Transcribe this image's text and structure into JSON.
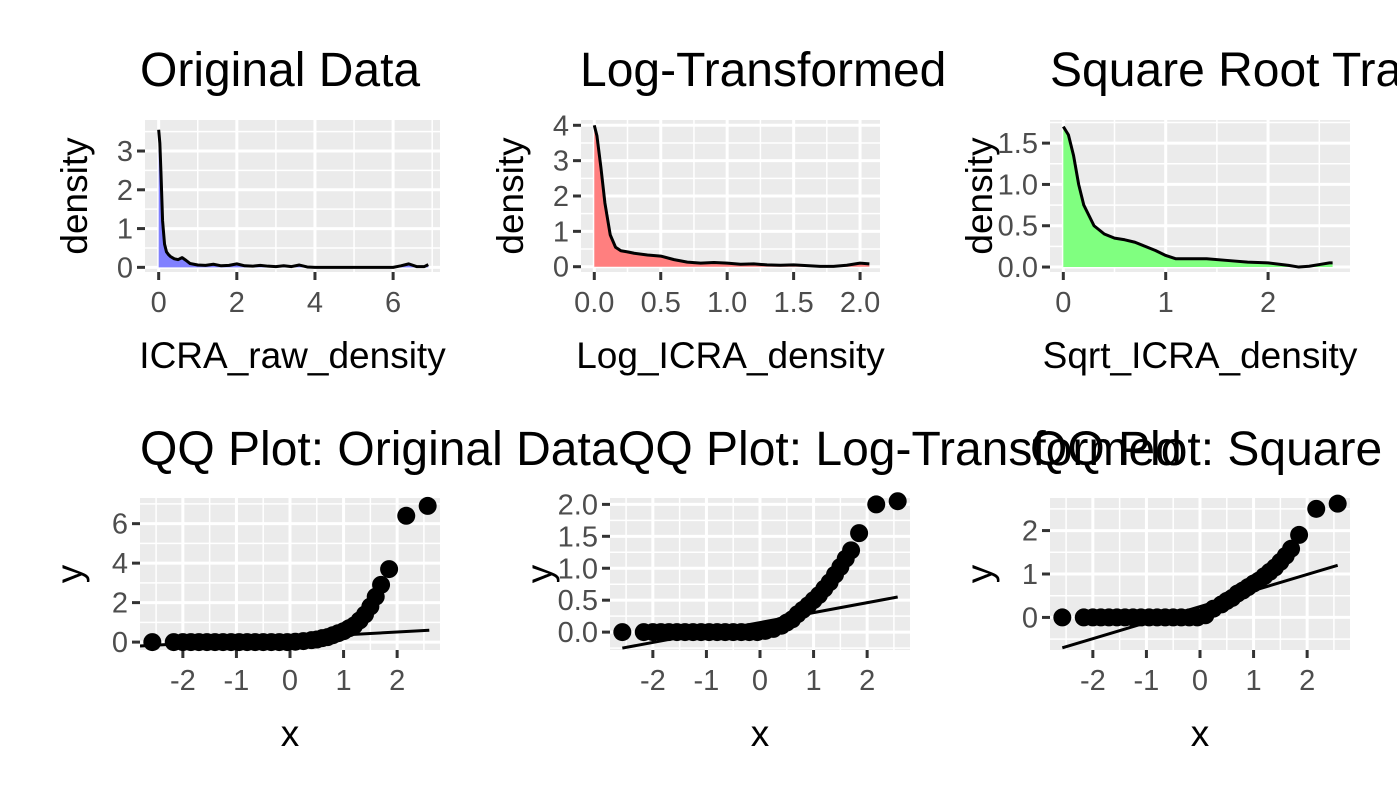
{
  "chart_data": [
    {
      "type": "area",
      "title": "Original Data",
      "xlabel": "ICRA_raw_density",
      "ylabel": "density",
      "xlim": [
        -0.35,
        7.2
      ],
      "ylim": [
        -0.12,
        3.8
      ],
      "xticks": [
        0,
        2,
        4,
        6
      ],
      "xtick_labels": [
        "0",
        "2",
        "4",
        "6"
      ],
      "yticks": [
        0,
        1,
        2,
        3
      ],
      "ytick_labels": [
        "0",
        "1",
        "2",
        "3"
      ],
      "fill_color": "#8080ff",
      "grid": true,
      "x": [
        0,
        0.03,
        0.06,
        0.1,
        0.15,
        0.2,
        0.25,
        0.3,
        0.4,
        0.5,
        0.6,
        0.7,
        0.8,
        0.9,
        1.0,
        1.2,
        1.4,
        1.6,
        1.8,
        2.0,
        2.2,
        2.4,
        2.6,
        2.8,
        3.0,
        3.2,
        3.4,
        3.6,
        3.8,
        4.0,
        5.0,
        6.0,
        6.2,
        6.4,
        6.6,
        6.8,
        6.9
      ],
      "y": [
        3.55,
        3.2,
        2.4,
        1.2,
        0.6,
        0.4,
        0.33,
        0.28,
        0.22,
        0.2,
        0.25,
        0.18,
        0.1,
        0.08,
        0.06,
        0.05,
        0.08,
        0.04,
        0.05,
        0.09,
        0.04,
        0.03,
        0.05,
        0.03,
        0.02,
        0.04,
        0.02,
        0.06,
        0.01,
        0.0,
        0.0,
        0.0,
        0.04,
        0.09,
        0.02,
        0.02,
        0.07
      ]
    },
    {
      "type": "area",
      "title": "Log-Transformed",
      "xlabel": "Log_ICRA_density",
      "ylabel": "density",
      "xlim": [
        -0.1,
        2.15
      ],
      "ylim": [
        -0.15,
        4.15
      ],
      "xticks": [
        0,
        0.5,
        1.0,
        1.5,
        2.0
      ],
      "xtick_labels": [
        "0.0",
        "0.5",
        "1.0",
        "1.5",
        "2.0"
      ],
      "yticks": [
        0,
        1,
        2,
        3,
        4
      ],
      "ytick_labels": [
        "0",
        "1",
        "2",
        "3",
        "4"
      ],
      "fill_color": "#ff7f7f",
      "grid": true,
      "x": [
        0,
        0.02,
        0.05,
        0.08,
        0.12,
        0.16,
        0.2,
        0.25,
        0.3,
        0.4,
        0.5,
        0.6,
        0.7,
        0.8,
        0.9,
        1.0,
        1.1,
        1.2,
        1.3,
        1.4,
        1.5,
        1.6,
        1.7,
        1.8,
        1.9,
        2.0,
        2.07
      ],
      "y": [
        4.0,
        3.7,
        2.8,
        1.8,
        0.9,
        0.55,
        0.45,
        0.42,
        0.38,
        0.33,
        0.3,
        0.2,
        0.13,
        0.1,
        0.12,
        0.1,
        0.07,
        0.08,
        0.05,
        0.04,
        0.05,
        0.03,
        0.01,
        0.01,
        0.04,
        0.1,
        0.08
      ]
    },
    {
      "type": "area",
      "title": "Square Root Transformed",
      "xlabel": "Sqrt_ICRA_density",
      "ylabel": "density",
      "xlim": [
        -0.13,
        2.8
      ],
      "ylim": [
        -0.06,
        1.78
      ],
      "xticks": [
        0,
        1,
        2
      ],
      "xtick_labels": [
        "0",
        "1",
        "2"
      ],
      "yticks": [
        0,
        0.5,
        1.0,
        1.5
      ],
      "ytick_labels": [
        "0.0",
        "0.5",
        "1.0",
        "1.5"
      ],
      "fill_color": "#80ff80",
      "grid": true,
      "x": [
        0,
        0.05,
        0.1,
        0.15,
        0.2,
        0.3,
        0.4,
        0.5,
        0.6,
        0.7,
        0.8,
        0.9,
        1.0,
        1.1,
        1.2,
        1.4,
        1.6,
        1.8,
        2.0,
        2.2,
        2.3,
        2.4,
        2.5,
        2.6,
        2.63
      ],
      "y": [
        1.7,
        1.6,
        1.35,
        1.0,
        0.75,
        0.5,
        0.4,
        0.35,
        0.33,
        0.3,
        0.25,
        0.2,
        0.14,
        0.1,
        0.1,
        0.1,
        0.08,
        0.06,
        0.05,
        0.02,
        0.0,
        0.01,
        0.03,
        0.05,
        0.05
      ]
    },
    {
      "type": "scatter",
      "title": "QQ Plot: Original Data",
      "xlabel": "x",
      "ylabel": "y",
      "xlim": [
        -2.8,
        2.8
      ],
      "ylim": [
        -0.4,
        7.3
      ],
      "xticks": [
        -2,
        -1,
        0,
        1,
        2
      ],
      "xtick_labels": [
        "-2",
        "-1",
        "0",
        "1",
        "2"
      ],
      "yticks": [
        0,
        2,
        4,
        6
      ],
      "ytick_labels": [
        "0",
        "2",
        "4",
        "6"
      ],
      "grid": true,
      "x": [
        -2.57,
        -2.17,
        -2.0,
        -1.85,
        -1.7,
        -1.55,
        -1.4,
        -1.25,
        -1.1,
        -0.95,
        -0.8,
        -0.65,
        -0.5,
        -0.35,
        -0.2,
        -0.05,
        0.1,
        0.25,
        0.4,
        0.5,
        0.6,
        0.7,
        0.8,
        0.9,
        1.0,
        1.1,
        1.2,
        1.3,
        1.4,
        1.5,
        1.6,
        1.7,
        1.85,
        2.17,
        2.57
      ],
      "y": [
        0.0,
        0.0,
        0.0,
        0.0,
        0.0,
        0.0,
        0.0,
        0.0,
        0.0,
        0.0,
        0.0,
        0.0,
        0.0,
        0.0,
        0.0,
        0.0,
        0.02,
        0.05,
        0.1,
        0.13,
        0.2,
        0.25,
        0.35,
        0.45,
        0.55,
        0.7,
        0.85,
        1.1,
        1.4,
        1.8,
        2.3,
        2.9,
        3.7,
        6.4,
        6.9
      ],
      "line": {
        "x": [
          -2.8,
          2.6
        ],
        "y": [
          -0.2,
          0.6
        ]
      }
    },
    {
      "type": "scatter",
      "title": "QQ Plot: Log-Transformed",
      "xlabel": "x",
      "ylabel": "y",
      "xlim": [
        -2.8,
        2.8
      ],
      "ylim": [
        -0.28,
        2.1
      ],
      "xticks": [
        -2,
        -1,
        0,
        1,
        2
      ],
      "xtick_labels": [
        "-2",
        "-1",
        "0",
        "1",
        "2"
      ],
      "yticks": [
        0,
        0.5,
        1.0,
        1.5,
        2.0
      ],
      "ytick_labels": [
        "0.0",
        "0.5",
        "1.0",
        "1.5",
        "2.0"
      ],
      "grid": true,
      "x": [
        -2.57,
        -2.17,
        -2.0,
        -1.85,
        -1.7,
        -1.55,
        -1.4,
        -1.25,
        -1.1,
        -0.95,
        -0.8,
        -0.65,
        -0.5,
        -0.35,
        -0.2,
        -0.05,
        0.1,
        0.25,
        0.4,
        0.5,
        0.6,
        0.7,
        0.8,
        0.9,
        1.0,
        1.1,
        1.2,
        1.3,
        1.4,
        1.5,
        1.6,
        1.7,
        1.85,
        2.17,
        2.57
      ],
      "y": [
        0.0,
        0.0,
        0.0,
        0.0,
        0.0,
        0.0,
        0.0,
        0.0,
        0.0,
        0.0,
        0.0,
        0.0,
        0.0,
        0.0,
        0.0,
        0.0,
        0.02,
        0.05,
        0.1,
        0.15,
        0.2,
        0.28,
        0.35,
        0.42,
        0.5,
        0.58,
        0.68,
        0.78,
        0.9,
        1.02,
        1.15,
        1.28,
        1.55,
        2.0,
        2.05
      ],
      "line": {
        "x": [
          -2.57,
          2.57
        ],
        "y": [
          -0.25,
          0.55
        ]
      }
    },
    {
      "type": "scatter",
      "title": "QQ Plot: Square Root Transformed",
      "xlabel": "x",
      "ylabel": "y",
      "xlim": [
        -2.8,
        2.8
      ],
      "ylim": [
        -0.75,
        2.75
      ],
      "xticks": [
        -2,
        -1,
        0,
        1,
        2
      ],
      "xtick_labels": [
        "-2",
        "-1",
        "0",
        "1",
        "2"
      ],
      "yticks": [
        0,
        1,
        2
      ],
      "ytick_labels": [
        "0",
        "1",
        "2"
      ],
      "grid": true,
      "x": [
        -2.57,
        -2.17,
        -2.0,
        -1.85,
        -1.7,
        -1.55,
        -1.4,
        -1.25,
        -1.1,
        -0.95,
        -0.8,
        -0.65,
        -0.5,
        -0.35,
        -0.2,
        -0.05,
        0.1,
        0.25,
        0.4,
        0.5,
        0.6,
        0.7,
        0.8,
        0.9,
        1.0,
        1.1,
        1.2,
        1.3,
        1.4,
        1.5,
        1.6,
        1.7,
        1.85,
        2.17,
        2.57
      ],
      "y": [
        0.0,
        0.0,
        0.0,
        0.0,
        0.0,
        0.0,
        0.0,
        0.0,
        0.0,
        0.0,
        0.0,
        0.0,
        0.0,
        0.0,
        0.0,
        0.0,
        0.05,
        0.2,
        0.3,
        0.38,
        0.45,
        0.55,
        0.62,
        0.7,
        0.78,
        0.85,
        0.95,
        1.05,
        1.15,
        1.28,
        1.42,
        1.58,
        1.9,
        2.5,
        2.62
      ],
      "line": {
        "x": [
          -2.57,
          2.57
        ],
        "y": [
          -0.7,
          1.2
        ]
      }
    }
  ]
}
